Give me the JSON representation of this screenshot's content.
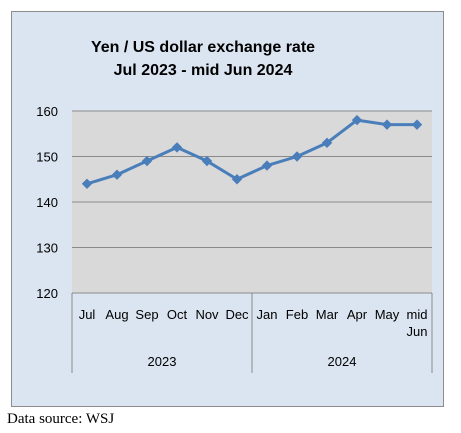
{
  "chart_data": {
    "type": "line",
    "title": "Yen / US dollar exchange rate",
    "subtitle": "Jul 2023 - mid Jun 2024",
    "categories": [
      "Jul",
      "Aug",
      "Sep",
      "Oct",
      "Nov",
      "Dec",
      "Jan",
      "Feb",
      "Mar",
      "Apr",
      "May",
      "mid Jun"
    ],
    "year_groups": [
      {
        "label": "2023",
        "months": [
          "Jul",
          "Aug",
          "Sep",
          "Oct",
          "Nov",
          "Dec"
        ]
      },
      {
        "label": "2024",
        "months": [
          "Jan",
          "Feb",
          "Mar",
          "Apr",
          "May",
          "mid Jun"
        ]
      }
    ],
    "series": [
      {
        "values": [
          144,
          146,
          149,
          152,
          149,
          145,
          148,
          150,
          153,
          158,
          157,
          157
        ]
      }
    ],
    "yticks": [
      "120",
      "130",
      "140",
      "150",
      "160"
    ],
    "ylim": [
      120,
      160
    ],
    "grid": true,
    "legend": "none",
    "colors": {
      "line": "#4a7ebb",
      "plot_bg": "#d9d9d9",
      "frame_bg": "#dbe5f1",
      "frame_border": "#8c8c8c",
      "grid": "#8a8a8a"
    }
  },
  "footer": {
    "source": "Data source: WSJ"
  }
}
